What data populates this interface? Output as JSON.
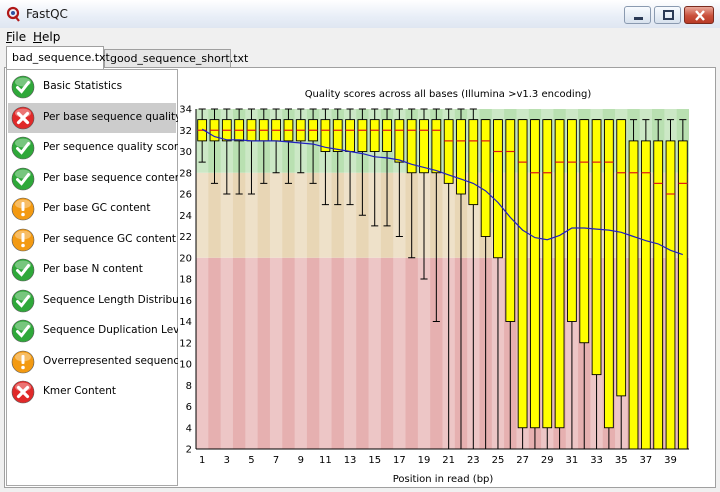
{
  "window": {
    "title": "FastQC",
    "icons": {
      "app": "fastqc-logo-icon",
      "minimize": "minimize-icon",
      "maximize": "maximize-icon",
      "close": "close-icon"
    }
  },
  "menu": [
    {
      "label": "File",
      "accel": "F"
    },
    {
      "label": "Help",
      "accel": "H"
    }
  ],
  "tabs": [
    {
      "label": "bad_sequence.txt",
      "active": true
    },
    {
      "label": "good_sequence_short.txt",
      "active": false
    }
  ],
  "modules": [
    {
      "label": "Basic Statistics",
      "status": "pass"
    },
    {
      "label": "Per base sequence quality",
      "status": "fail",
      "selected": true
    },
    {
      "label": "Per sequence quality scores",
      "status": "pass"
    },
    {
      "label": "Per base sequence content",
      "status": "pass"
    },
    {
      "label": "Per base GC content",
      "status": "warn"
    },
    {
      "label": "Per sequence GC content",
      "status": "warn"
    },
    {
      "label": "Per base N content",
      "status": "pass"
    },
    {
      "label": "Sequence Length Distribution",
      "status": "pass"
    },
    {
      "label": "Sequence Duplication Levels",
      "status": "pass"
    },
    {
      "label": "Overrepresented sequences",
      "status": "warn"
    },
    {
      "label": "Kmer Content",
      "status": "fail"
    }
  ],
  "status_colors": {
    "pass": "#2fa83a",
    "warn": "#f39a12",
    "fail": "#e02a2a"
  },
  "chart_data": {
    "type": "box",
    "title": "Quality scores across all bases (Illumina >v1.3 encoding)",
    "xlabel": "Position in read (bp)",
    "ylabel": "",
    "ylim": [
      2,
      34
    ],
    "yticks": [
      2,
      4,
      6,
      8,
      10,
      12,
      14,
      16,
      18,
      20,
      22,
      24,
      26,
      28,
      30,
      32,
      34
    ],
    "xticks": [
      1,
      3,
      5,
      7,
      9,
      11,
      13,
      15,
      17,
      19,
      21,
      23,
      25,
      27,
      29,
      31,
      33,
      35,
      37,
      39
    ],
    "bands": [
      {
        "from": 2,
        "to": 20,
        "color": "#e6b0b0"
      },
      {
        "from": 20,
        "to": 28,
        "color": "#e8d6b5"
      },
      {
        "from": 28,
        "to": 34,
        "color": "#b9e0b1"
      }
    ],
    "box_color": "#ffff00",
    "median_color": "#e01818",
    "mean_color": "#2020c0",
    "positions": [
      1,
      2,
      3,
      4,
      5,
      6,
      7,
      8,
      9,
      10,
      11,
      12,
      13,
      14,
      15,
      16,
      17,
      18,
      19,
      20,
      21,
      22,
      23,
      24,
      25,
      26,
      27,
      28,
      29,
      30,
      31,
      32,
      33,
      34,
      35,
      36,
      37,
      38,
      39,
      40
    ],
    "q1": [
      31,
      31,
      31,
      31,
      31,
      31,
      31,
      31,
      31,
      31,
      30,
      30,
      30,
      30,
      30,
      30,
      29,
      28,
      28,
      28,
      27,
      26,
      25,
      22,
      20,
      14,
      4,
      4,
      4,
      4,
      14,
      12,
      9,
      4,
      7,
      2,
      2,
      2,
      2,
      2
    ],
    "median": [
      32,
      32,
      32,
      32,
      32,
      32,
      32,
      32,
      32,
      32,
      32,
      32,
      32,
      32,
      32,
      32,
      32,
      32,
      32,
      32,
      31,
      31,
      31,
      31,
      30,
      30,
      29,
      28,
      28,
      29,
      29,
      29,
      29,
      29,
      28,
      28,
      28,
      27,
      26,
      27
    ],
    "q3": [
      33,
      33,
      33,
      33,
      33,
      33,
      33,
      33,
      33,
      33,
      33,
      33,
      33,
      33,
      33,
      33,
      33,
      33,
      33,
      33,
      33,
      33,
      33,
      33,
      33,
      33,
      33,
      33,
      33,
      33,
      33,
      33,
      33,
      33,
      33,
      31,
      31,
      31,
      31,
      31
    ],
    "low": [
      29,
      27,
      26,
      26,
      26,
      27,
      28,
      27,
      28,
      27,
      25,
      25,
      25,
      24,
      23,
      23,
      22,
      20,
      18,
      14,
      2,
      2,
      2,
      2,
      2,
      2,
      2,
      2,
      2,
      2,
      2,
      2,
      2,
      2,
      2,
      2,
      2,
      2,
      2,
      2
    ],
    "high": [
      34,
      34,
      34,
      34,
      34,
      34,
      34,
      34,
      34,
      34,
      34,
      34,
      34,
      34,
      34,
      34,
      34,
      34,
      34,
      34,
      34,
      34,
      34,
      33,
      33,
      33,
      33,
      33,
      33,
      33,
      33,
      33,
      33,
      33,
      33,
      33,
      33,
      33,
      33,
      33
    ],
    "mean": [
      32.1,
      31.4,
      31.1,
      31.1,
      31.0,
      31.0,
      31.0,
      30.9,
      30.8,
      30.7,
      30.4,
      30.2,
      30.0,
      29.8,
      29.5,
      29.4,
      29.2,
      28.8,
      28.5,
      28.2,
      27.8,
      27.4,
      27.0,
      26.3,
      25.2,
      23.8,
      22.6,
      21.9,
      21.7,
      22.1,
      22.8,
      22.8,
      22.7,
      22.6,
      22.4,
      22.0,
      21.6,
      21.3,
      20.7,
      20.3
    ]
  }
}
